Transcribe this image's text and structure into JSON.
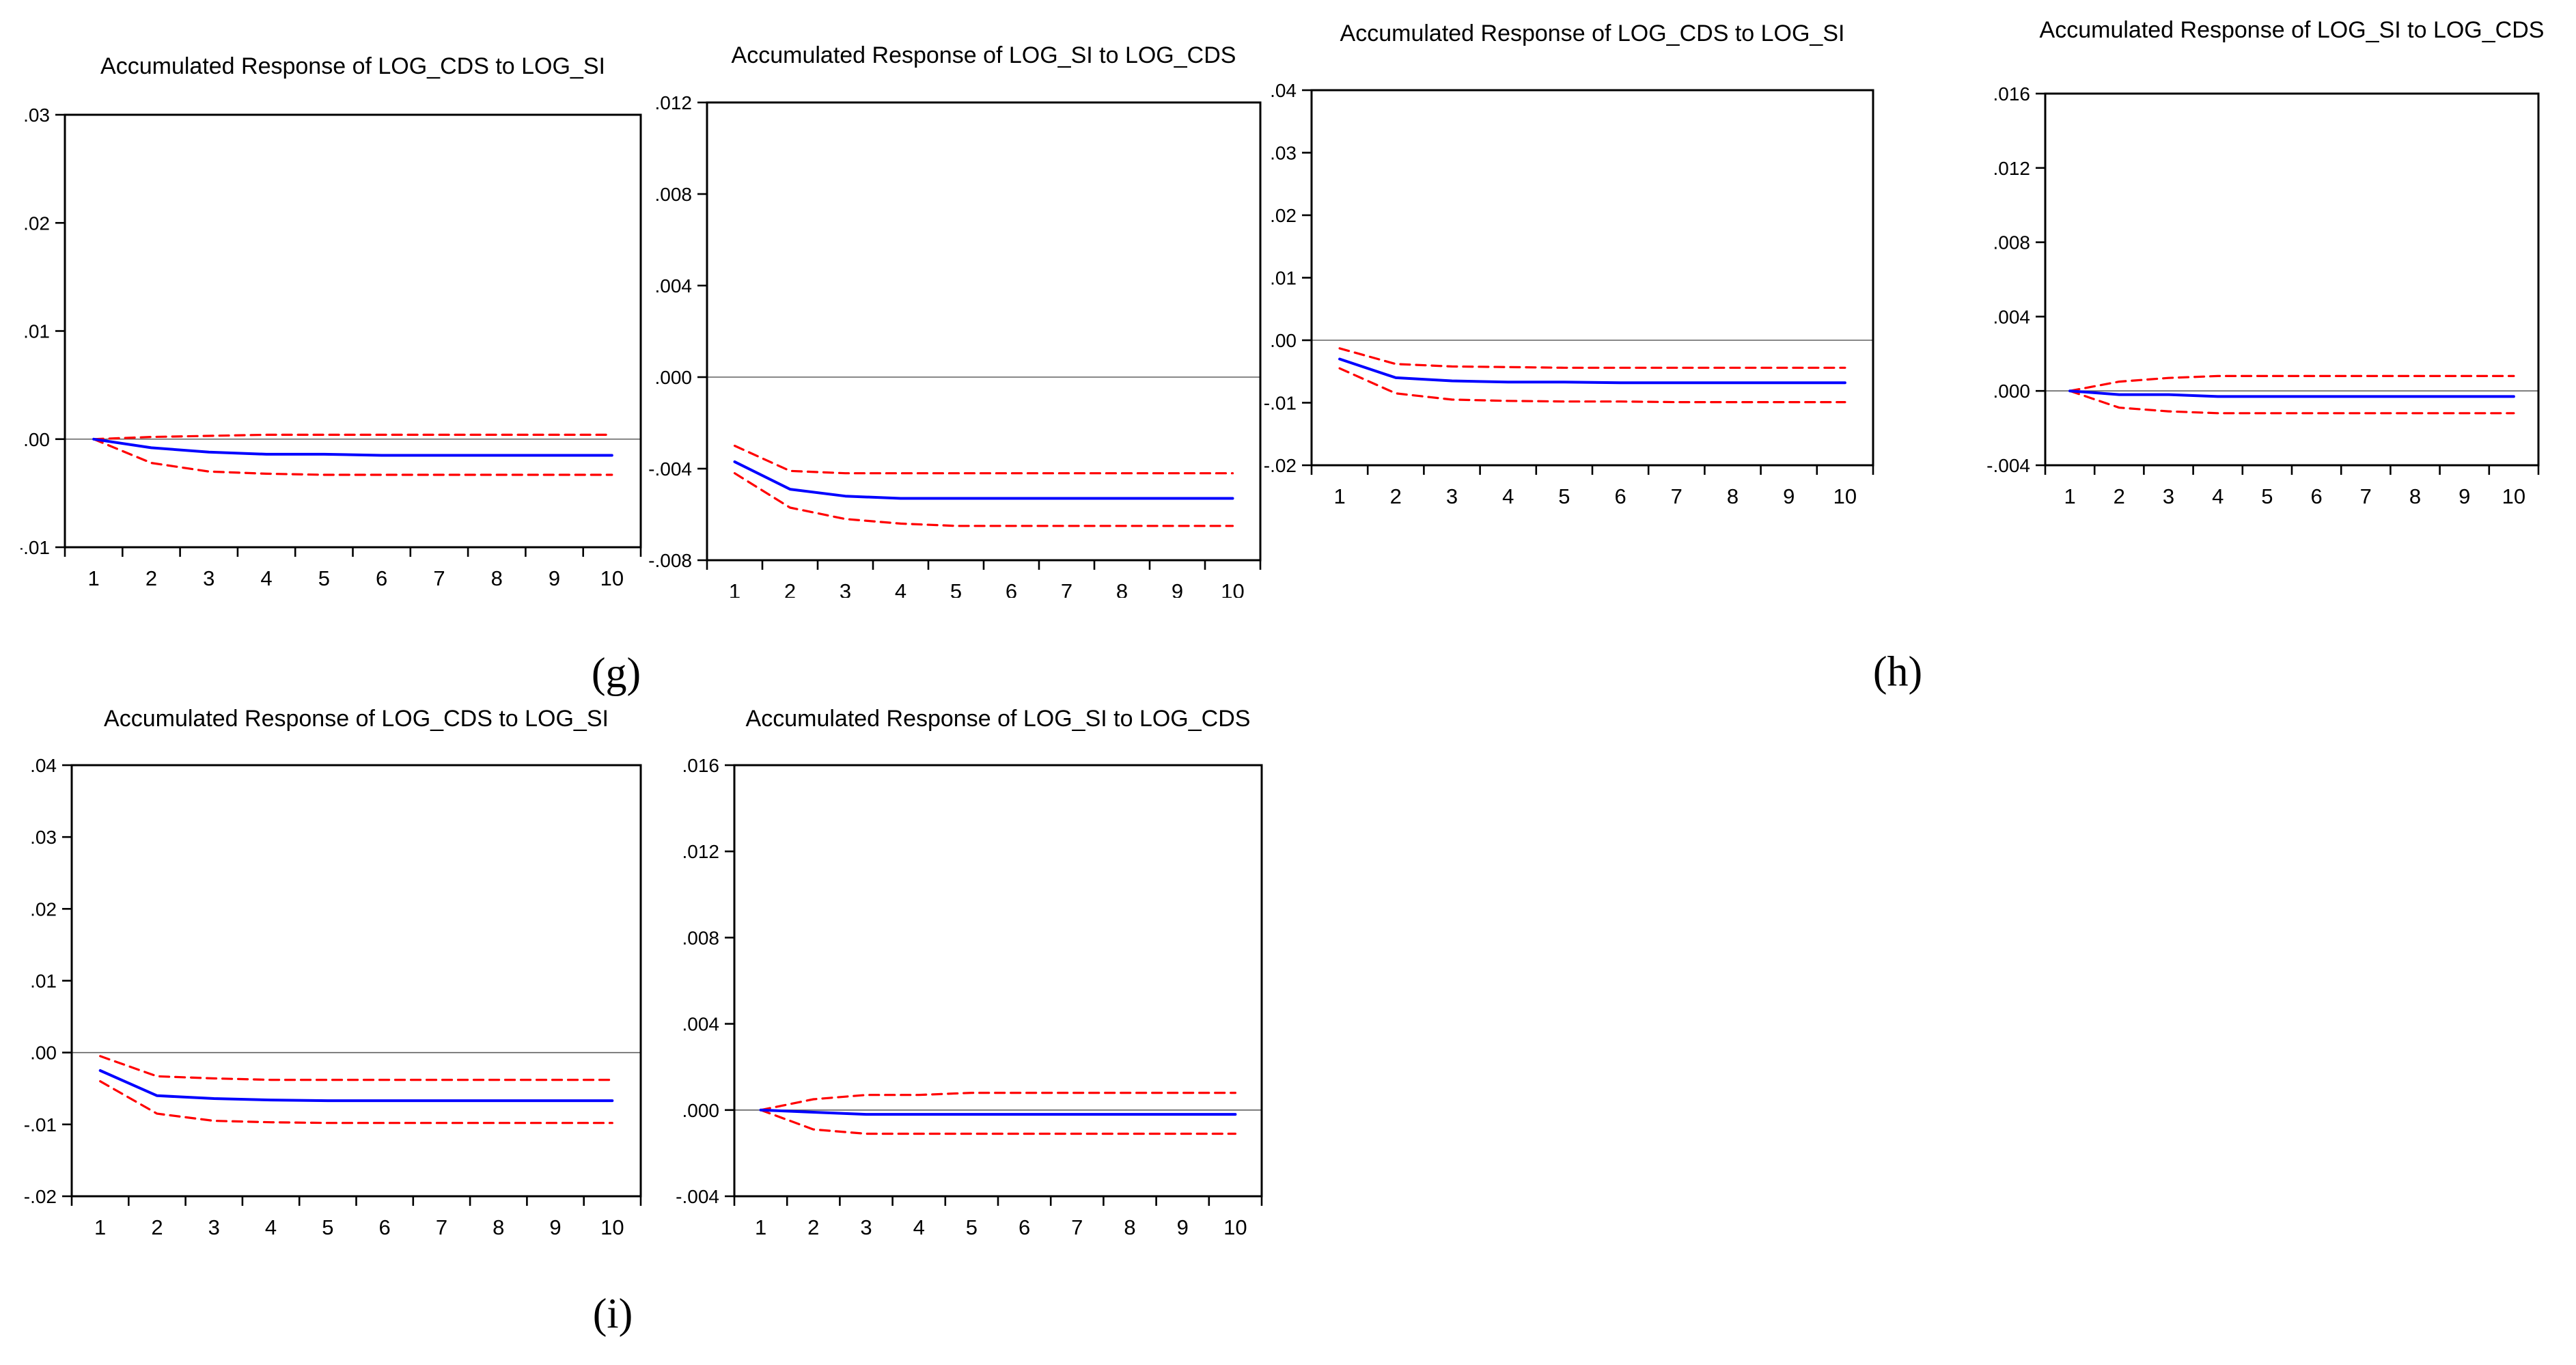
{
  "page": {
    "background": "#ffffff"
  },
  "figure_labels": {
    "g": "(g)",
    "h": "(h)",
    "i": "(i)"
  },
  "colors": {
    "response_line": "#0000ff",
    "confidence_band": "#ff0000",
    "axis_frame": "#000000",
    "zero_line": "#606060",
    "text": "#000000"
  },
  "chart_data": [
    {
      "id": "g-cds-to-si",
      "type": "line",
      "group": "g",
      "title": "Accumulated Response of LOG_CDS to LOG_SI",
      "xlabel": "",
      "ylabel": "",
      "x": [
        1,
        2,
        3,
        4,
        5,
        6,
        7,
        8,
        9,
        10
      ],
      "x_tick_labels": [
        "1",
        "2",
        "3",
        "4",
        "5",
        "6",
        "7",
        "8",
        "9",
        "10"
      ],
      "xlim": [
        0.5,
        10.5
      ],
      "ylim": [
        -0.01,
        0.03
      ],
      "yticks": [
        0.03,
        0.02,
        0.01,
        0.0,
        -0.01
      ],
      "ytick_labels": [
        ".03",
        ".02",
        ".01",
        ".00",
        "-.01"
      ],
      "grid": false,
      "legend": "none",
      "zero_line": true,
      "series": [
        {
          "name": "accumulated response",
          "style": "solid",
          "color": "#0000ff",
          "values": [
            0.0,
            -0.0008,
            -0.0012,
            -0.0014,
            -0.0014,
            -0.0015,
            -0.0015,
            -0.0015,
            -0.0015,
            -0.0015
          ]
        },
        {
          "name": "upper 2 s.e. band",
          "style": "dashed",
          "color": "#ff0000",
          "values": [
            0.0,
            0.0002,
            0.0003,
            0.0004,
            0.0004,
            0.0004,
            0.0004,
            0.0004,
            0.0004,
            0.0004
          ]
        },
        {
          "name": "lower 2 s.e. band",
          "style": "dashed",
          "color": "#ff0000",
          "values": [
            0.0,
            -0.0022,
            -0.003,
            -0.0032,
            -0.0033,
            -0.0033,
            -0.0033,
            -0.0033,
            -0.0033,
            -0.0033
          ]
        }
      ]
    },
    {
      "id": "g-si-to-cds",
      "type": "line",
      "group": "g",
      "title": "Accumulated Response of LOG_SI to LOG_CDS",
      "xlabel": "",
      "ylabel": "",
      "x": [
        1,
        2,
        3,
        4,
        5,
        6,
        7,
        8,
        9,
        10
      ],
      "x_tick_labels": [
        "1",
        "2",
        "3",
        "4",
        "5",
        "6",
        "7",
        "8",
        "9",
        "10"
      ],
      "xlim": [
        0.5,
        10.5
      ],
      "ylim": [
        -0.008,
        0.012
      ],
      "yticks": [
        0.012,
        0.008,
        0.004,
        0.0,
        -0.004,
        -0.008
      ],
      "ytick_labels": [
        ".012",
        ".008",
        ".004",
        ".000",
        "-.004",
        "-.008"
      ],
      "grid": false,
      "legend": "none",
      "zero_line": true,
      "series": [
        {
          "name": "accumulated response",
          "style": "solid",
          "color": "#0000ff",
          "values": [
            -0.0037,
            -0.0049,
            -0.0052,
            -0.0053,
            -0.0053,
            -0.0053,
            -0.0053,
            -0.0053,
            -0.0053,
            -0.0053
          ]
        },
        {
          "name": "upper 2 s.e. band",
          "style": "dashed",
          "color": "#ff0000",
          "values": [
            -0.003,
            -0.0041,
            -0.0042,
            -0.0042,
            -0.0042,
            -0.0042,
            -0.0042,
            -0.0042,
            -0.0042,
            -0.0042
          ]
        },
        {
          "name": "lower 2 s.e. band",
          "style": "dashed",
          "color": "#ff0000",
          "values": [
            -0.0042,
            -0.0057,
            -0.0062,
            -0.0064,
            -0.0065,
            -0.0065,
            -0.0065,
            -0.0065,
            -0.0065,
            -0.0065
          ]
        }
      ]
    },
    {
      "id": "h-cds-to-si",
      "type": "line",
      "group": "h",
      "title": "Accumulated Response of LOG_CDS to LOG_SI",
      "xlabel": "",
      "ylabel": "",
      "x": [
        1,
        2,
        3,
        4,
        5,
        6,
        7,
        8,
        9,
        10
      ],
      "x_tick_labels": [
        "1",
        "2",
        "3",
        "4",
        "5",
        "6",
        "7",
        "8",
        "9",
        "10"
      ],
      "xlim": [
        0.5,
        10.5
      ],
      "ylim": [
        -0.02,
        0.04
      ],
      "yticks": [
        0.04,
        0.03,
        0.02,
        0.01,
        0.0,
        -0.01,
        -0.02
      ],
      "ytick_labels": [
        ".04",
        ".03",
        ".02",
        ".01",
        ".00",
        "-.01",
        "-.02"
      ],
      "grid": false,
      "legend": "none",
      "zero_line": true,
      "series": [
        {
          "name": "accumulated response",
          "style": "solid",
          "color": "#0000ff",
          "values": [
            -0.003,
            -0.006,
            -0.0065,
            -0.0067,
            -0.0067,
            -0.0068,
            -0.0068,
            -0.0068,
            -0.0068,
            -0.0068
          ]
        },
        {
          "name": "upper 2 s.e. band",
          "style": "dashed",
          "color": "#ff0000",
          "values": [
            -0.0013,
            -0.0038,
            -0.0042,
            -0.0043,
            -0.0044,
            -0.0044,
            -0.0044,
            -0.0044,
            -0.0044,
            -0.0044
          ]
        },
        {
          "name": "lower 2 s.e. band",
          "style": "dashed",
          "color": "#ff0000",
          "values": [
            -0.0045,
            -0.0085,
            -0.0095,
            -0.0097,
            -0.0098,
            -0.0098,
            -0.0099,
            -0.0099,
            -0.0099,
            -0.0099
          ]
        }
      ]
    },
    {
      "id": "h-si-to-cds",
      "type": "line",
      "group": "h",
      "title": "Accumulated Response of LOG_SI to LOG_CDS",
      "xlabel": "",
      "ylabel": "",
      "x": [
        1,
        2,
        3,
        4,
        5,
        6,
        7,
        8,
        9,
        10
      ],
      "x_tick_labels": [
        "1",
        "2",
        "3",
        "4",
        "5",
        "6",
        "7",
        "8",
        "9",
        "10"
      ],
      "xlim": [
        0.5,
        10.5
      ],
      "ylim": [
        -0.004,
        0.016
      ],
      "yticks": [
        0.016,
        0.012,
        0.008,
        0.004,
        0.0,
        -0.004
      ],
      "ytick_labels": [
        ".016",
        ".012",
        ".008",
        ".004",
        ".000",
        "-.004"
      ],
      "grid": false,
      "legend": "none",
      "zero_line": true,
      "series": [
        {
          "name": "accumulated response",
          "style": "solid",
          "color": "#0000ff",
          "values": [
            0.0,
            -0.0002,
            -0.0002,
            -0.0003,
            -0.0003,
            -0.0003,
            -0.0003,
            -0.0003,
            -0.0003,
            -0.0003
          ]
        },
        {
          "name": "upper 2 s.e. band",
          "style": "dashed",
          "color": "#ff0000",
          "values": [
            0.0,
            0.0005,
            0.0007,
            0.0008,
            0.0008,
            0.0008,
            0.0008,
            0.0008,
            0.0008,
            0.0008
          ]
        },
        {
          "name": "lower 2 s.e. band",
          "style": "dashed",
          "color": "#ff0000",
          "values": [
            0.0,
            -0.0009,
            -0.0011,
            -0.0012,
            -0.0012,
            -0.0012,
            -0.0012,
            -0.0012,
            -0.0012,
            -0.0012
          ]
        }
      ]
    },
    {
      "id": "i-cds-to-si",
      "type": "line",
      "group": "i",
      "title": "Accumulated Response of LOG_CDS to LOG_SI",
      "xlabel": "",
      "ylabel": "",
      "x": [
        1,
        2,
        3,
        4,
        5,
        6,
        7,
        8,
        9,
        10
      ],
      "x_tick_labels": [
        "1",
        "2",
        "3",
        "4",
        "5",
        "6",
        "7",
        "8",
        "9",
        "10"
      ],
      "xlim": [
        0.5,
        10.5
      ],
      "ylim": [
        -0.02,
        0.04
      ],
      "yticks": [
        0.04,
        0.03,
        0.02,
        0.01,
        0.0,
        -0.01,
        -0.02
      ],
      "ytick_labels": [
        ".04",
        ".03",
        ".02",
        ".01",
        ".00",
        "-.01",
        "-.02"
      ],
      "grid": false,
      "legend": "none",
      "zero_line": true,
      "series": [
        {
          "name": "accumulated response",
          "style": "solid",
          "color": "#0000ff",
          "values": [
            -0.0025,
            -0.006,
            -0.0064,
            -0.0066,
            -0.0067,
            -0.0067,
            -0.0067,
            -0.0067,
            -0.0067,
            -0.0067
          ]
        },
        {
          "name": "upper 2 s.e. band",
          "style": "dashed",
          "color": "#ff0000",
          "values": [
            -0.0005,
            -0.0033,
            -0.0036,
            -0.0038,
            -0.0038,
            -0.0038,
            -0.0038,
            -0.0038,
            -0.0038,
            -0.0038
          ]
        },
        {
          "name": "lower 2 s.e. band",
          "style": "dashed",
          "color": "#ff0000",
          "values": [
            -0.004,
            -0.0085,
            -0.0095,
            -0.0097,
            -0.0098,
            -0.0098,
            -0.0098,
            -0.0098,
            -0.0098,
            -0.0098
          ]
        }
      ]
    },
    {
      "id": "i-si-to-cds",
      "type": "line",
      "group": "i",
      "title": "Accumulated Response of LOG_SI to LOG_CDS",
      "xlabel": "",
      "ylabel": "",
      "x": [
        1,
        2,
        3,
        4,
        5,
        6,
        7,
        8,
        9,
        10
      ],
      "x_tick_labels": [
        "1",
        "2",
        "3",
        "4",
        "5",
        "6",
        "7",
        "8",
        "9",
        "10"
      ],
      "xlim": [
        0.5,
        10.5
      ],
      "ylim": [
        -0.004,
        0.016
      ],
      "yticks": [
        0.016,
        0.012,
        0.008,
        0.004,
        0.0,
        -0.004
      ],
      "ytick_labels": [
        ".016",
        ".012",
        ".008",
        ".004",
        ".000",
        "-.004"
      ],
      "grid": false,
      "legend": "none",
      "zero_line": true,
      "series": [
        {
          "name": "accumulated response",
          "style": "solid",
          "color": "#0000ff",
          "values": [
            0.0,
            -0.0001,
            -0.0002,
            -0.0002,
            -0.0002,
            -0.0002,
            -0.0002,
            -0.0002,
            -0.0002,
            -0.0002
          ]
        },
        {
          "name": "upper 2 s.e. band",
          "style": "dashed",
          "color": "#ff0000",
          "values": [
            0.0,
            0.0005,
            0.0007,
            0.0007,
            0.0008,
            0.0008,
            0.0008,
            0.0008,
            0.0008,
            0.0008
          ]
        },
        {
          "name": "lower 2 s.e. band",
          "style": "dashed",
          "color": "#ff0000",
          "values": [
            0.0,
            -0.0009,
            -0.0011,
            -0.0011,
            -0.0011,
            -0.0011,
            -0.0011,
            -0.0011,
            -0.0011,
            -0.0011
          ]
        }
      ]
    }
  ]
}
